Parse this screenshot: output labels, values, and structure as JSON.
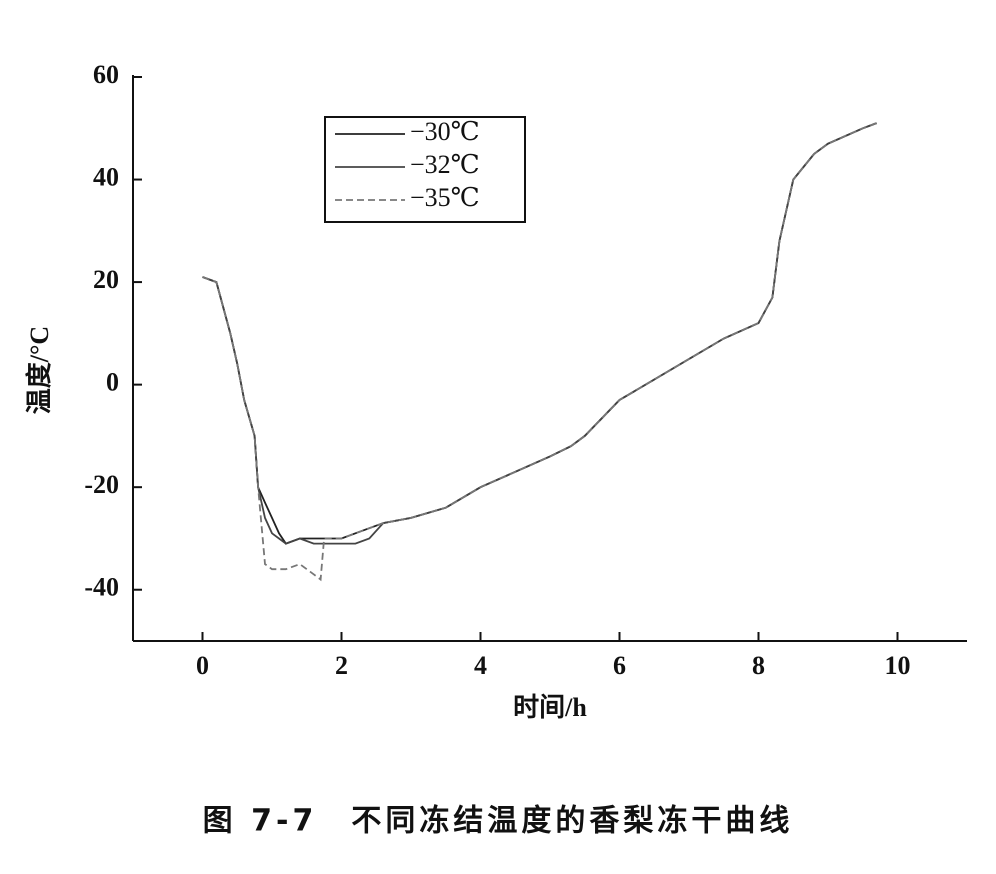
{
  "chart_data": {
    "type": "line",
    "title": "图 7-7　不同冻结温度的香梨冻干曲线",
    "x_label": "时间/h",
    "y_label": "温度/°C",
    "x": [
      0,
      0.2,
      0.4,
      0.5,
      0.6,
      0.75,
      0.8,
      0.9,
      1.0,
      1.1,
      1.2,
      1.4,
      1.6,
      1.7,
      1.75,
      2.0,
      2.2,
      2.4,
      2.6,
      3.0,
      3.5,
      4.0,
      4.5,
      5.0,
      5.3,
      5.5,
      6.0,
      6.5,
      7.0,
      7.5,
      8.0,
      8.2,
      8.3,
      8.5,
      8.8,
      9.0,
      9.5,
      9.7
    ],
    "series": [
      {
        "name": "−30℃",
        "color": "#222222",
        "linestyle": "solid",
        "values": [
          21,
          20,
          10,
          4,
          -3,
          -10,
          -20,
          -23,
          -26,
          -29,
          -31,
          -30,
          -30,
          -30,
          -30,
          -30,
          -29,
          -28,
          -27,
          -26,
          -24,
          -20,
          -17,
          -14,
          -12,
          -10,
          -3,
          1,
          5,
          9,
          12,
          17,
          28,
          40,
          45,
          47,
          50,
          51
        ]
      },
      {
        "name": "−32℃",
        "color": "#444444",
        "linestyle": "solid",
        "values": [
          21,
          20,
          10,
          4,
          -3,
          -10,
          -20,
          -26,
          -29,
          -30,
          -31,
          -30,
          -31,
          -31,
          -31,
          -31,
          -31,
          -30,
          -27,
          -26,
          -24,
          -20,
          -17,
          -14,
          -12,
          -10,
          -3,
          1,
          5,
          9,
          12,
          17,
          28,
          40,
          45,
          47,
          50,
          51
        ]
      },
      {
        "name": "−35℃",
        "color": "#777777",
        "linestyle": "dashed",
        "values": [
          21,
          20,
          10,
          4,
          -3,
          -10,
          -20,
          -35,
          -36,
          -36,
          -36,
          -35,
          -37,
          -38,
          -30,
          -30,
          -29,
          -28,
          -27,
          -26,
          -24,
          -20,
          -17,
          -14,
          -12,
          -10,
          -3,
          1,
          5,
          9,
          12,
          17,
          28,
          40,
          45,
          47,
          50,
          51
        ]
      }
    ],
    "xlim": [
      -1,
      11
    ],
    "xticks": [
      0,
      2,
      4,
      6,
      8,
      10
    ],
    "ylim": [
      -50,
      60
    ],
    "yticks": [
      -40,
      -20,
      0,
      20,
      40,
      60
    ]
  }
}
